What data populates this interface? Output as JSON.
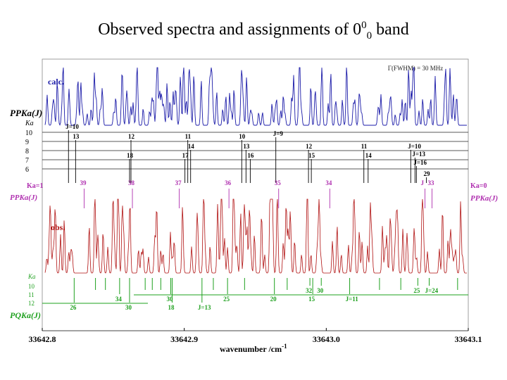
{
  "title": {
    "main": "Observed spectra and assignments of 0",
    "sup": "0",
    "sub": "0",
    "band": " band"
  },
  "chart_data": {
    "type": "line",
    "xlabel": "wavenumber /cm",
    "xlabel_sup": "-1",
    "x_ticks": [
      "33642.8",
      "33642.9",
      "33643.0",
      "33643.1"
    ],
    "xlim": [
      33642.8,
      33643.1
    ],
    "fwhm_label": "Γ(FWHM) = 30 MHz",
    "series": [
      {
        "name": "calc.",
        "color": "#1a1aa8"
      },
      {
        "name": "obs.",
        "color": "#b01010"
      }
    ],
    "calc_assignments": {
      "branch_label_top": "PPKa(J)",
      "branch_label_left": "PPKa(J)",
      "branch_label_right": "PPKa(J)",
      "ka_axis_label": "Ka",
      "ka_rows": [
        "10",
        "9",
        "8",
        "7",
        "6"
      ],
      "j_labels": [
        {
          "text": "J=10",
          "x": 33642.816
        },
        {
          "text": "13",
          "x": 33642.821
        },
        {
          "text": "12",
          "x": 33642.86
        },
        {
          "text": "11",
          "x": 33642.9
        },
        {
          "text": "10",
          "x": 33642.938
        },
        {
          "text": "J=9",
          "x": 33642.962
        },
        {
          "text": "14",
          "x": 33642.902
        },
        {
          "text": "13",
          "x": 33642.941
        },
        {
          "text": "12",
          "x": 33642.985
        },
        {
          "text": "11",
          "x": 33643.024
        },
        {
          "text": "J=10",
          "x": 33643.057
        },
        {
          "text": "18",
          "x": 33642.859
        },
        {
          "text": "17",
          "x": 33642.898
        },
        {
          "text": "16",
          "x": 33642.944
        },
        {
          "text": "15",
          "x": 33642.987
        },
        {
          "text": "14",
          "x": 33643.027
        },
        {
          "text": "J=13",
          "x": 33643.06
        },
        {
          "text": "J=16",
          "x": 33643.061
        },
        {
          "text": "29",
          "x": 33643.068
        }
      ],
      "magenta_label": "Ka=1",
      "magenta_right_label": "Ka=0",
      "magenta_j": [
        {
          "text": "39",
          "x": 33642.827
        },
        {
          "text": "38",
          "x": 33642.861
        },
        {
          "text": "37",
          "x": 33642.894
        },
        {
          "text": "36",
          "x": 33642.929
        },
        {
          "text": "35",
          "x": 33642.964
        },
        {
          "text": "34",
          "x": 33643.0
        },
        {
          "text": "J",
          "x": 33643.067
        },
        {
          "text": "33",
          "x": 33643.072
        }
      ]
    },
    "obs_assignments": {
      "branch_label": "PQKa(J)",
      "ka_axis_label": "Ka",
      "ka_rows": [
        "10",
        "11",
        "12"
      ],
      "green_labels": [
        {
          "text": "26",
          "x": 33642.82
        },
        {
          "text": "34",
          "x": 33642.852
        },
        {
          "text": "30",
          "x": 33642.859
        },
        {
          "text": "30",
          "x": 33642.888
        },
        {
          "text": "18",
          "x": 33642.889
        },
        {
          "text": "J=13",
          "x": 33642.91
        },
        {
          "text": "25",
          "x": 33642.928
        },
        {
          "text": "20",
          "x": 33642.961
        },
        {
          "text": "32",
          "x": 33642.986
        },
        {
          "text": "30",
          "x": 33642.994
        },
        {
          "text": "15",
          "x": 33642.988
        },
        {
          "text": "J=11",
          "x": 33643.014
        },
        {
          "text": "25",
          "x": 33643.062
        },
        {
          "text": "J=24",
          "x": 33643.07
        }
      ]
    }
  }
}
